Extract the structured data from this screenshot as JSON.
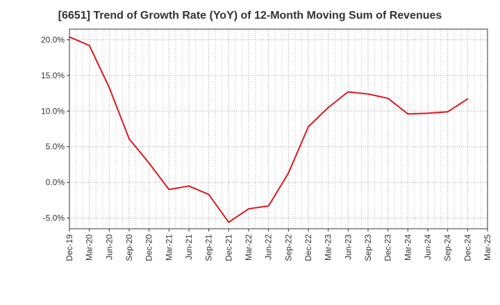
{
  "chart_data": {
    "type": "line",
    "title": "[6651]  Trend of Growth Rate (YoY) of 12-Month Moving Sum of Revenues",
    "xlabel": "",
    "ylabel": "",
    "x_ticks": [
      "Dec-19",
      "Mar-20",
      "Jun-20",
      "Sep-20",
      "Dec-20",
      "Mar-21",
      "Jun-21",
      "Sep-21",
      "Dec-21",
      "Mar-22",
      "Jun-22",
      "Sep-22",
      "Dec-22",
      "Mar-23",
      "Jun-23",
      "Sep-23",
      "Dec-23",
      "Mar-24",
      "Jun-24",
      "Sep-24",
      "Dec-24",
      "Mar-25"
    ],
    "y_ticks": [
      {
        "value": 20.0,
        "label": "20.0%"
      },
      {
        "value": 15.0,
        "label": "15.0%"
      },
      {
        "value": 10.0,
        "label": "10.0%"
      },
      {
        "value": 5.0,
        "label": "5.0%"
      },
      {
        "value": 0.0,
        "label": "0.0%"
      },
      {
        "value": -5.0,
        "label": "-5.0%"
      }
    ],
    "ylim": [
      -6.5,
      21.5
    ],
    "grid": true,
    "series": [
      {
        "color": "#e0161c",
        "x": [
          "Dec-19",
          "Mar-20",
          "Jun-20",
          "Sep-20",
          "Dec-20",
          "Mar-21",
          "Jun-21",
          "Sep-21",
          "Dec-21",
          "Mar-22",
          "Jun-22",
          "Sep-22",
          "Dec-22",
          "Mar-23",
          "Jun-23",
          "Sep-23",
          "Dec-23",
          "Mar-24",
          "Jun-24",
          "Sep-24",
          "Dec-24"
        ],
        "values": [
          20.4,
          19.2,
          13.3,
          6.1,
          2.7,
          -1.0,
          -0.5,
          -1.7,
          -5.6,
          -3.7,
          -3.3,
          1.3,
          7.8,
          10.5,
          12.7,
          12.4,
          11.8,
          9.6,
          9.7,
          9.9,
          11.7
        ]
      }
    ]
  }
}
